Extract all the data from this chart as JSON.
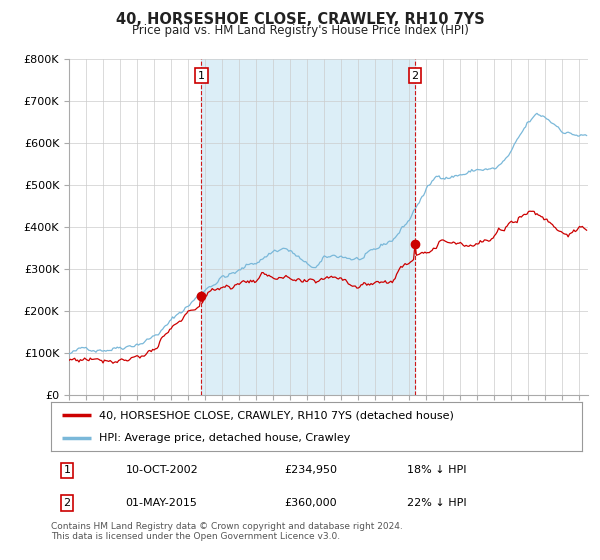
{
  "title": "40, HORSESHOE CLOSE, CRAWLEY, RH10 7YS",
  "subtitle": "Price paid vs. HM Land Registry's House Price Index (HPI)",
  "ylabel_ticks": [
    "£0",
    "£100K",
    "£200K",
    "£300K",
    "£400K",
    "£500K",
    "£600K",
    "£700K",
    "£800K"
  ],
  "ylim": [
    0,
    800000
  ],
  "xlim_start": 1995.0,
  "xlim_end": 2025.5,
  "sale1_x": 2002.78,
  "sale1_y": 234950,
  "sale2_x": 2015.33,
  "sale2_y": 360000,
  "sale1_label": "1",
  "sale2_label": "2",
  "hpi_color": "#7ab8d9",
  "price_color": "#cc0000",
  "dashed_vline_color": "#cc0000",
  "shade_color": "#dceef7",
  "legend_label_price": "40, HORSESHOE CLOSE, CRAWLEY, RH10 7YS (detached house)",
  "legend_label_hpi": "HPI: Average price, detached house, Crawley",
  "table_row1": [
    "1",
    "10-OCT-2002",
    "£234,950",
    "18% ↓ HPI"
  ],
  "table_row2": [
    "2",
    "01-MAY-2015",
    "£360,000",
    "22% ↓ HPI"
  ],
  "footer": "Contains HM Land Registry data © Crown copyright and database right 2024.\nThis data is licensed under the Open Government Licence v3.0.",
  "bg_color": "#ffffff",
  "plot_bg_color": "#ffffff",
  "grid_color": "#cccccc"
}
